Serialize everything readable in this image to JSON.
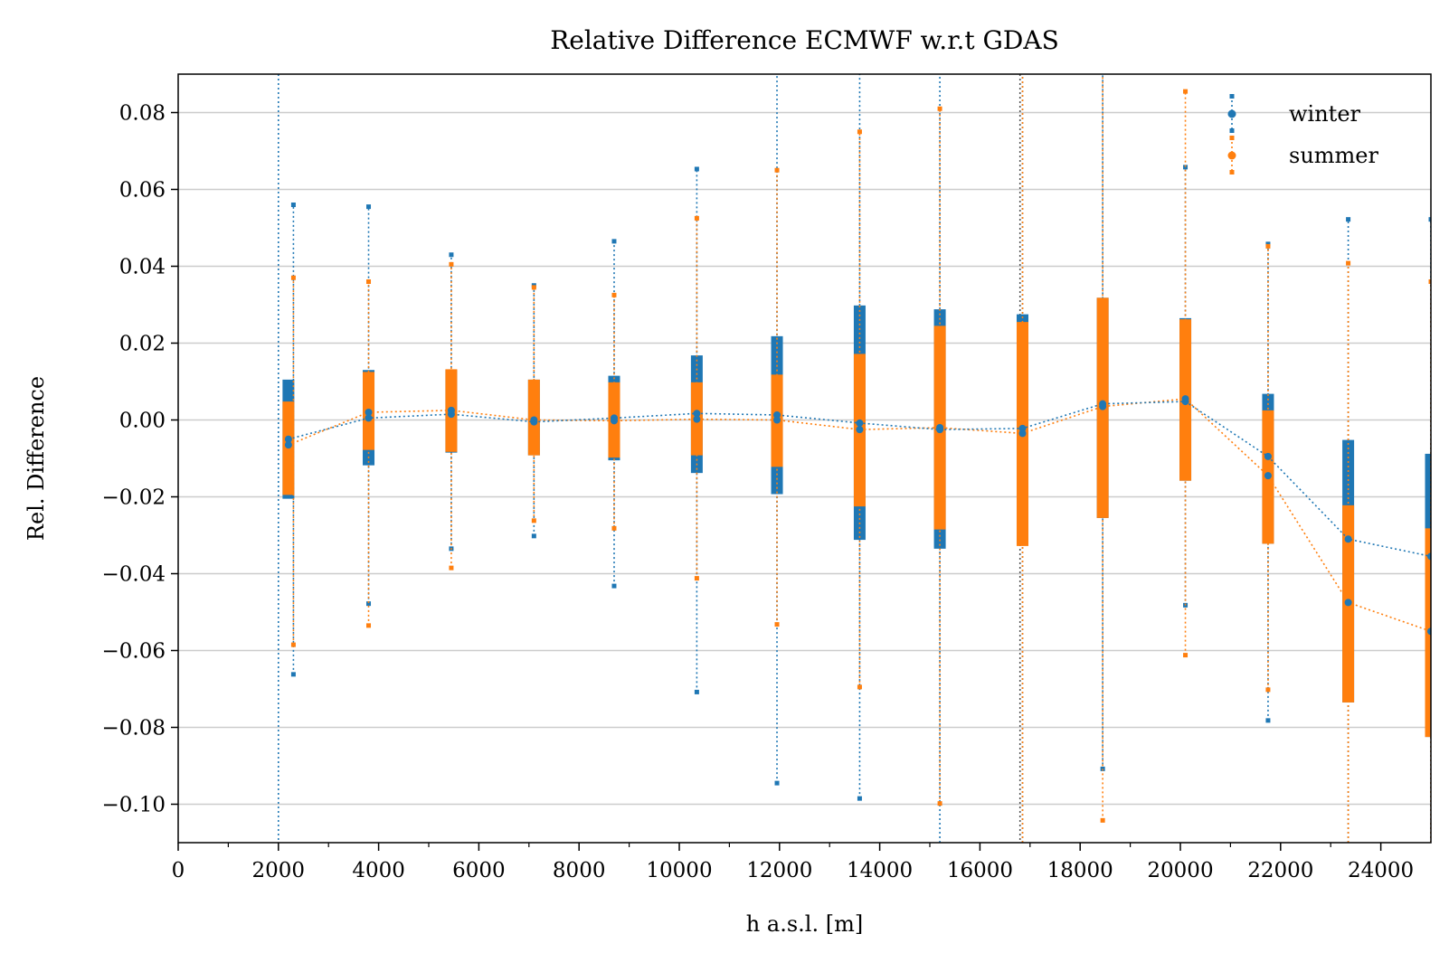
{
  "chart_data": {
    "type": "scatter",
    "title": "Relative Difference ECMWF w.r.t GDAS",
    "xlabel": "h a.s.l. [m]",
    "ylabel": "Rel. Difference",
    "xlim": [
      0,
      25000
    ],
    "ylim": [
      -0.11,
      0.09
    ],
    "xticks": [
      0,
      2000,
      4000,
      6000,
      8000,
      10000,
      12000,
      14000,
      16000,
      18000,
      20000,
      22000,
      24000
    ],
    "xtick_labels": [
      "0",
      "2000",
      "4000",
      "6000",
      "8000",
      "10000",
      "12000",
      "14000",
      "16000",
      "18000",
      "20000",
      "22000",
      "24000"
    ],
    "yticks": [
      0.08,
      0.06,
      0.04,
      0.02,
      0.0,
      -0.02,
      -0.04,
      -0.06,
      -0.08,
      -0.1
    ],
    "ytick_labels": [
      "0.08",
      "0.06",
      "0.04",
      "0.02",
      "0.00",
      "−0.02",
      "−0.04",
      "−0.06",
      "−0.08",
      "−0.10"
    ],
    "grid": "horizontal",
    "legend_position": "top-right",
    "series": [
      {
        "name": "winter",
        "color": "#1f77b4",
        "x": [
          2200,
          3800,
          5450,
          7100,
          8700,
          10350,
          11950,
          13600,
          15200,
          16850,
          18450,
          20100,
          21750,
          23350,
          25000
        ],
        "y": [
          -0.005,
          0.0005,
          0.0015,
          -0.0005,
          0.0005,
          0.0017,
          0.0013,
          -0.0008,
          -0.0025,
          -0.0022,
          0.0042,
          0.0048,
          -0.0095,
          -0.031,
          -0.0355
        ],
        "q_low": [
          -0.0205,
          -0.0118,
          -0.0085,
          -0.0092,
          -0.0105,
          -0.0138,
          -0.0193,
          -0.0312,
          -0.0335,
          -0.0325,
          -0.0255,
          -0.0158,
          -0.0322,
          -0.0735,
          -0.0825
        ],
        "q_high": [
          0.0105,
          0.013,
          0.013,
          0.0105,
          0.0115,
          0.0168,
          0.0218,
          0.0298,
          0.0288,
          0.0275,
          0.0318,
          0.0265,
          0.0068,
          -0.0052,
          -0.0088
        ],
        "min": [
          -0.0662,
          -0.0478,
          -0.0335,
          -0.0302,
          -0.0432,
          -0.0708,
          -0.0945,
          -0.0985,
          -0.125,
          -0.125,
          -0.0908,
          -0.0482,
          -0.0782,
          -0.11,
          -0.125
        ],
        "max": [
          0.056,
          0.0555,
          0.043,
          0.035,
          0.0465,
          0.0653,
          0.095,
          0.095,
          0.095,
          0.095,
          0.095,
          0.0658,
          0.0458,
          0.0522,
          0.0522
        ],
        "whisker_x": [
          2300,
          3800,
          5450,
          7100,
          8700,
          10350,
          11950,
          13600,
          15200,
          16850,
          18450,
          20100,
          21750,
          23350,
          25000
        ]
      },
      {
        "name": "summer",
        "color": "#ff7f0e",
        "x": [
          2200,
          3800,
          5450,
          7100,
          8700,
          10350,
          11950,
          13600,
          15200,
          16850,
          18450,
          20100,
          21750,
          23350,
          25000
        ],
        "y": [
          -0.0065,
          0.002,
          0.0025,
          0.0,
          -0.0002,
          0.0002,
          0.0,
          -0.0025,
          -0.002,
          -0.0035,
          0.0035,
          0.0055,
          -0.0145,
          -0.0475,
          -0.055
        ],
        "q_low": [
          -0.0195,
          -0.0078,
          -0.0083,
          -0.0092,
          -0.0098,
          -0.0092,
          -0.0122,
          -0.0225,
          -0.0285,
          -0.0328,
          -0.0255,
          -0.0158,
          -0.0322,
          -0.0735,
          -0.0825
        ],
        "q_high": [
          0.0048,
          0.0125,
          0.0132,
          0.0105,
          0.0098,
          0.0098,
          0.0118,
          0.0172,
          0.0245,
          0.0255,
          0.0318,
          0.0262,
          0.0025,
          -0.0222,
          -0.0282
        ],
        "min": [
          -0.0585,
          -0.0535,
          -0.0385,
          -0.0262,
          -0.0282,
          -0.0412,
          -0.0532,
          -0.0695,
          -0.0998,
          -0.125,
          -0.1042,
          -0.0612,
          -0.0702,
          -0.125,
          -0.125
        ],
        "max": [
          0.037,
          0.036,
          0.0405,
          0.0345,
          0.0325,
          0.0525,
          0.065,
          0.075,
          0.081,
          0.095,
          0.095,
          0.0855,
          0.0452,
          0.0408,
          0.036
        ],
        "whisker_x": [
          2300,
          3800,
          5450,
          7100,
          8700,
          10350,
          11950,
          13600,
          15200,
          16850,
          18450,
          20100,
          21750,
          23350,
          25000
        ]
      }
    ],
    "extra_vertical_lines": [
      {
        "x": 2000,
        "color": "#1f77b4"
      },
      {
        "x": 16800,
        "color": "#555555"
      }
    ]
  },
  "colors": {
    "winter": "#1f77b4",
    "summer": "#ff7f0e",
    "grid": "#cccccc",
    "axes": "#000000"
  }
}
